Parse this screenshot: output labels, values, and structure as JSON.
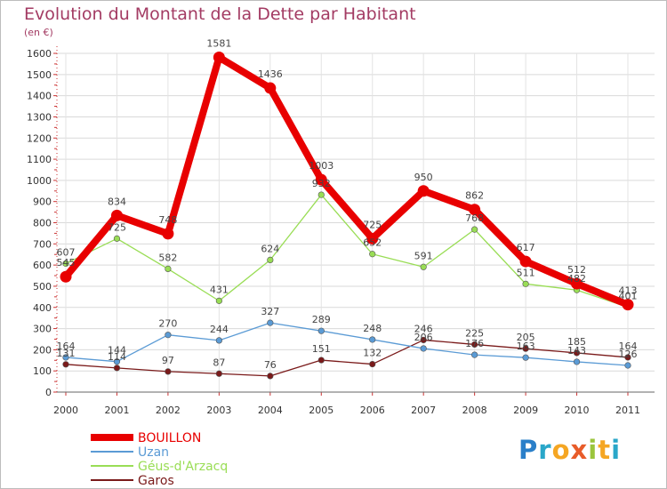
{
  "chart_data": {
    "type": "line",
    "title": "Evolution du Montant de la Dette par Habitant",
    "unit_label": "(en €)",
    "xlabel": "",
    "ylabel": "",
    "ylim": [
      0,
      1600
    ],
    "yticks": [
      "0",
      "100",
      "200",
      "300",
      "400",
      "500",
      "600",
      "700",
      "800",
      "900",
      "1000",
      "1100",
      "1200",
      "1300",
      "1400",
      "1500",
      "1600"
    ],
    "categories": [
      "2000",
      "2001",
      "2002",
      "2003",
      "2004",
      "2005",
      "2006",
      "2007",
      "2008",
      "2009",
      "2010",
      "2011"
    ],
    "series": [
      {
        "name": "BOUILLON",
        "color": "#e80000",
        "values": [
          545,
          834,
          748,
          1581,
          1436,
          1003,
          725,
          950,
          862,
          617,
          512,
          413
        ]
      },
      {
        "name": "Uzan",
        "color": "#5b9bd5",
        "values": [
          164,
          144,
          270,
          244,
          327,
          289,
          248,
          206,
          176,
          163,
          143,
          126
        ]
      },
      {
        "name": "Géus-d'Arzacq",
        "color": "#99dd55",
        "values": [
          607,
          725,
          582,
          431,
          624,
          932,
          652,
          591,
          768,
          511,
          482,
          401
        ]
      },
      {
        "name": "Garos",
        "color": "#7a1a1a",
        "values": [
          131,
          114,
          97,
          87,
          76,
          151,
          132,
          246,
          225,
          205,
          185,
          164
        ]
      }
    ],
    "legend_position": "bottom-left"
  },
  "logo": {
    "text": "Proxiti"
  }
}
